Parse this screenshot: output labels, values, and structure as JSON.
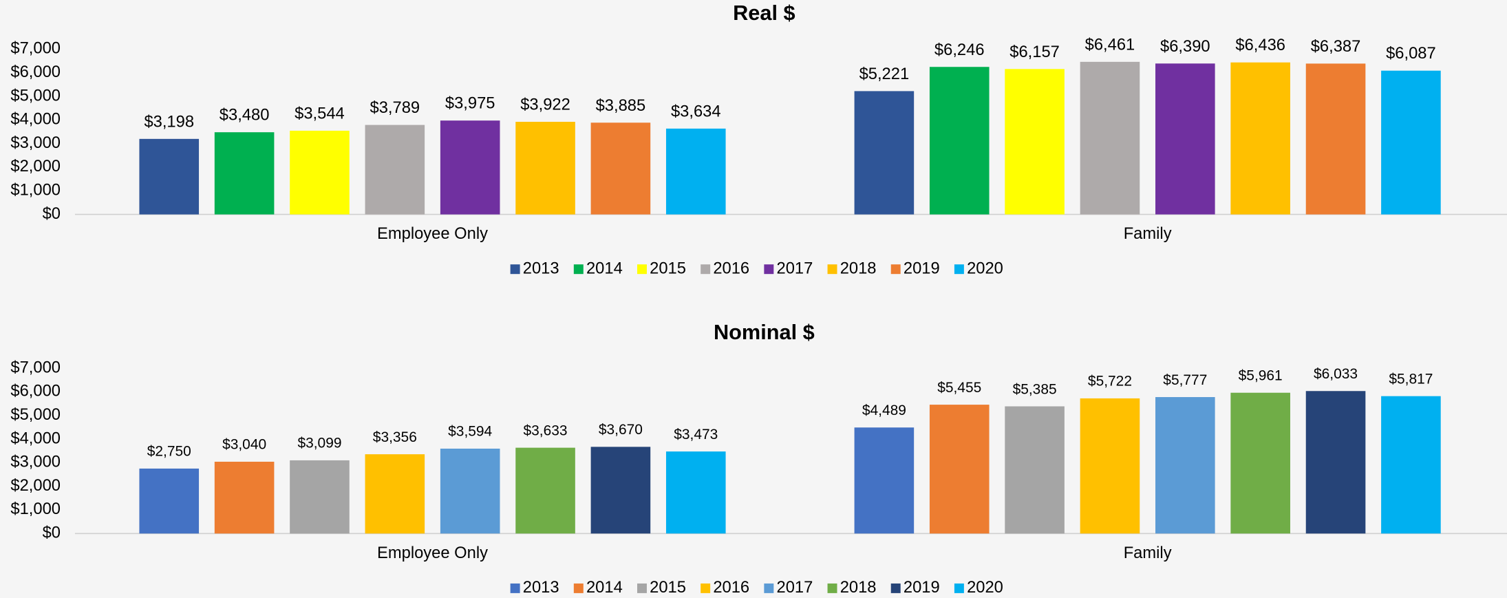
{
  "chart_data": [
    {
      "type": "bar",
      "title": "Real $",
      "categories": [
        "Employee Only",
        "Family"
      ],
      "series": [
        {
          "name": "2013",
          "color": "#2f5597",
          "values": [
            3198,
            5221
          ],
          "value_labels": [
            "$3,198",
            "$5,221"
          ]
        },
        {
          "name": "2014",
          "color": "#00b050",
          "values": [
            3480,
            6246
          ],
          "value_labels": [
            "$3,480",
            "$6,246"
          ]
        },
        {
          "name": "2015",
          "color": "#ffff00",
          "values": [
            3544,
            6157
          ],
          "value_labels": [
            "$3,544",
            "$6,157"
          ]
        },
        {
          "name": "2016",
          "color": "#aeaaaa",
          "values": [
            3789,
            6461
          ],
          "value_labels": [
            "$3,789",
            "$6,461"
          ]
        },
        {
          "name": "2017",
          "color": "#7030a0",
          "values": [
            3975,
            6390
          ],
          "value_labels": [
            "$3,975",
            "$6,390"
          ]
        },
        {
          "name": "2018",
          "color": "#ffc000",
          "values": [
            3922,
            6436
          ],
          "value_labels": [
            "$3,922",
            "$6,436"
          ]
        },
        {
          "name": "2019",
          "color": "#ed7d31",
          "values": [
            3885,
            6387
          ],
          "value_labels": [
            "$3,885",
            "$6,387"
          ]
        },
        {
          "name": "2020",
          "color": "#00b0f0",
          "values": [
            3634,
            6087
          ],
          "value_labels": [
            "$3,634",
            "$6,087"
          ]
        }
      ],
      "ylim": [
        0,
        7000
      ],
      "yticks": [
        {
          "value": 0,
          "label": "$0"
        },
        {
          "value": 1000,
          "label": "$1,000"
        },
        {
          "value": 2000,
          "label": "$2,000"
        },
        {
          "value": 3000,
          "label": "$3,000"
        },
        {
          "value": 4000,
          "label": "$4,000"
        },
        {
          "value": 5000,
          "label": "$5,000"
        },
        {
          "value": 6000,
          "label": "$6,000"
        },
        {
          "value": 7000,
          "label": "$7,000"
        }
      ],
      "grid": false,
      "legend": "bottom"
    },
    {
      "type": "bar",
      "title": "Nominal $",
      "categories": [
        "Employee Only",
        "Family"
      ],
      "series": [
        {
          "name": "2013",
          "color": "#4472c4",
          "values": [
            2750,
            4489
          ],
          "value_labels": [
            "$2,750",
            "$4,489"
          ]
        },
        {
          "name": "2014",
          "color": "#ed7d31",
          "values": [
            3040,
            5455
          ],
          "value_labels": [
            "$3,040",
            "$5,455"
          ]
        },
        {
          "name": "2015",
          "color": "#a5a5a5",
          "values": [
            3099,
            5385
          ],
          "value_labels": [
            "$3,099",
            "$5,385"
          ]
        },
        {
          "name": "2016",
          "color": "#ffc000",
          "values": [
            3356,
            5722
          ],
          "value_labels": [
            "$3,356",
            "$5,722"
          ]
        },
        {
          "name": "2017",
          "color": "#5b9bd5",
          "values": [
            3594,
            5777
          ],
          "value_labels": [
            "$3,594",
            "$5,777"
          ]
        },
        {
          "name": "2018",
          "color": "#70ad47",
          "values": [
            3633,
            5961
          ],
          "value_labels": [
            "$3,633",
            "$5,961"
          ]
        },
        {
          "name": "2019",
          "color": "#264478",
          "values": [
            3670,
            6033
          ],
          "value_labels": [
            "$3,670",
            "$6,033"
          ]
        },
        {
          "name": "2020",
          "color": "#00b0f0",
          "values": [
            3473,
            5817
          ],
          "value_labels": [
            "$3,473",
            "$5,817"
          ]
        }
      ],
      "ylim": [
        0,
        7000
      ],
      "yticks": [
        {
          "value": 0,
          "label": "$0"
        },
        {
          "value": 1000,
          "label": "$1,000"
        },
        {
          "value": 2000,
          "label": "$2,000"
        },
        {
          "value": 3000,
          "label": "$3,000"
        },
        {
          "value": 4000,
          "label": "$4,000"
        },
        {
          "value": 5000,
          "label": "$5,000"
        },
        {
          "value": 6000,
          "label": "$6,000"
        },
        {
          "value": 7000,
          "label": "$7,000"
        }
      ],
      "grid": false,
      "legend": "bottom"
    }
  ]
}
